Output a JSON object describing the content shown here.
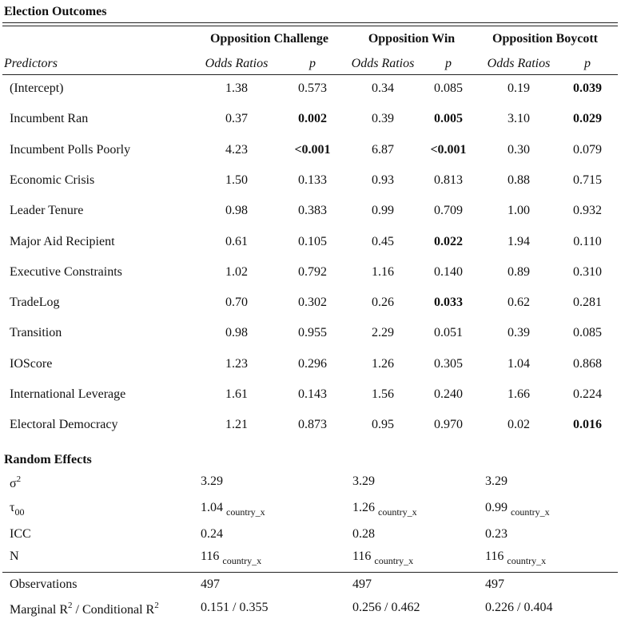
{
  "caption": "Election Outcomes",
  "groups": [
    "Opposition Challenge",
    "Opposition Win",
    "Opposition Boycott"
  ],
  "subheaders": {
    "predictors": "Predictors",
    "odds": "Odds Ratios",
    "p": "p"
  },
  "rows": [
    {
      "label": "(Intercept)",
      "values": [
        "1.38",
        "0.573",
        "0.34",
        "0.085",
        "0.19",
        "0.039"
      ],
      "bold": [
        false,
        false,
        false,
        false,
        false,
        true
      ]
    },
    {
      "label": "Incumbent Ran",
      "values": [
        "0.37",
        "0.002",
        "0.39",
        "0.005",
        "3.10",
        "0.029"
      ],
      "bold": [
        false,
        true,
        false,
        true,
        false,
        true
      ]
    },
    {
      "label": "Incumbent Polls Poorly",
      "values": [
        "4.23",
        "<0.001",
        "6.87",
        "<0.001",
        "0.30",
        "0.079"
      ],
      "bold": [
        false,
        true,
        false,
        true,
        false,
        false
      ]
    },
    {
      "label": "Economic Crisis",
      "values": [
        "1.50",
        "0.133",
        "0.93",
        "0.813",
        "0.88",
        "0.715"
      ],
      "bold": [
        false,
        false,
        false,
        false,
        false,
        false
      ]
    },
    {
      "label": "Leader Tenure",
      "values": [
        "0.98",
        "0.383",
        "0.99",
        "0.709",
        "1.00",
        "0.932"
      ],
      "bold": [
        false,
        false,
        false,
        false,
        false,
        false
      ]
    },
    {
      "label": "Major Aid Recipient",
      "values": [
        "0.61",
        "0.105",
        "0.45",
        "0.022",
        "1.94",
        "0.110"
      ],
      "bold": [
        false,
        false,
        false,
        true,
        false,
        false
      ]
    },
    {
      "label": "Executive Constraints",
      "values": [
        "1.02",
        "0.792",
        "1.16",
        "0.140",
        "0.89",
        "0.310"
      ],
      "bold": [
        false,
        false,
        false,
        false,
        false,
        false
      ]
    },
    {
      "label": "TradeLog",
      "values": [
        "0.70",
        "0.302",
        "0.26",
        "0.033",
        "0.62",
        "0.281"
      ],
      "bold": [
        false,
        false,
        false,
        true,
        false,
        false
      ]
    },
    {
      "label": "Transition",
      "values": [
        "0.98",
        "0.955",
        "2.29",
        "0.051",
        "0.39",
        "0.085"
      ],
      "bold": [
        false,
        false,
        false,
        false,
        false,
        false
      ]
    },
    {
      "label": "IOScore",
      "values": [
        "1.23",
        "0.296",
        "1.26",
        "0.305",
        "1.04",
        "0.868"
      ],
      "bold": [
        false,
        false,
        false,
        false,
        false,
        false
      ]
    },
    {
      "label": "International Leverage",
      "values": [
        "1.61",
        "0.143",
        "1.56",
        "0.240",
        "1.66",
        "0.224"
      ],
      "bold": [
        false,
        false,
        false,
        false,
        false,
        false
      ]
    },
    {
      "label": "Electoral Democracy",
      "values": [
        "1.21",
        "0.873",
        "0.95",
        "0.970",
        "0.02",
        "0.016"
      ],
      "bold": [
        false,
        false,
        false,
        false,
        false,
        true
      ]
    }
  ],
  "random_effects": {
    "heading": "Random Effects",
    "sigma_symbol": "σ",
    "sigma_sup": "2",
    "sigma_values": [
      "3.29",
      "3.29",
      "3.29"
    ],
    "tau_symbol": "τ",
    "tau_sub": "00",
    "tau_values": [
      "1.04",
      "1.26",
      "0.99"
    ],
    "group_suffix": "country_x",
    "icc_label": "ICC",
    "icc_values": [
      "0.24",
      "0.28",
      "0.23"
    ],
    "n_label": "N",
    "n_values": [
      "116",
      "116",
      "116"
    ]
  },
  "footer": {
    "observations_label": "Observations",
    "observations_values": [
      "497",
      "497",
      "497"
    ],
    "r2_label_marginal": "Marginal R",
    "r2_label_conditional": " / Conditional R",
    "r2_sup": "2",
    "r2_values": [
      "0.151 / 0.355",
      "0.256 / 0.462",
      "0.226 / 0.404"
    ]
  }
}
